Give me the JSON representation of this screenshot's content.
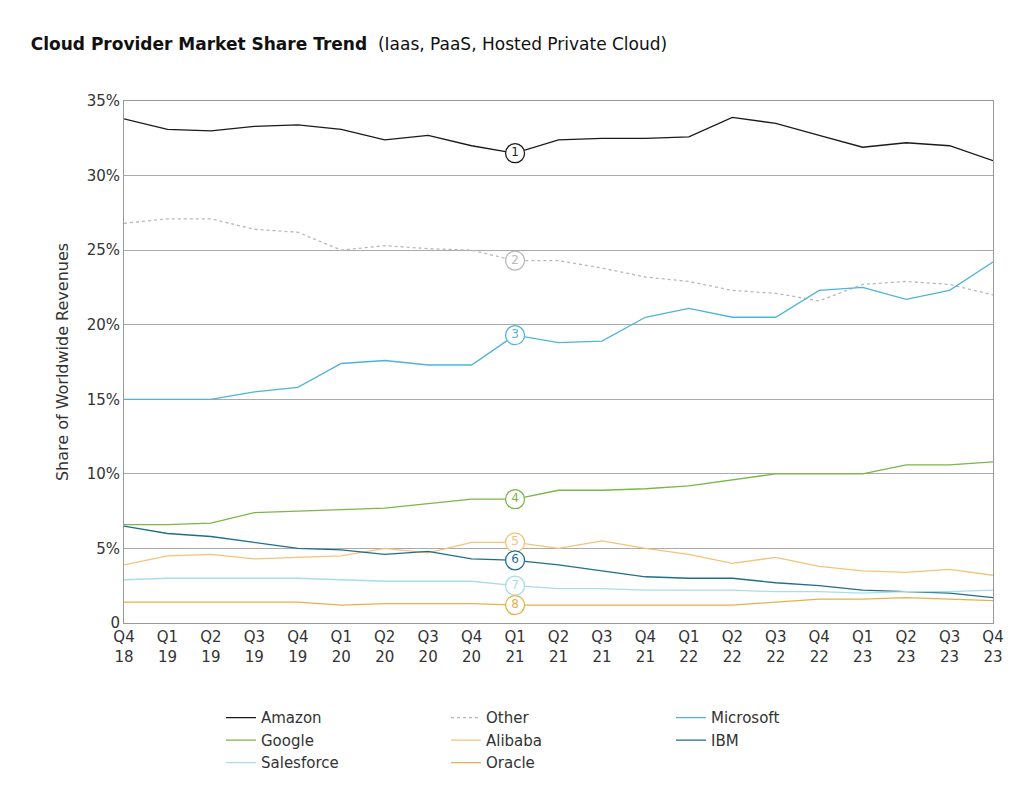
{
  "chart_data": {
    "type": "line",
    "title": "Cloud Provider Market Share Trend",
    "subtitle": "(Iaas, PaaS, Hosted Private Cloud)",
    "y_label": "Share of Worldwide Revenues",
    "categories": [
      "Q4 18",
      "Q1 19",
      "Q2 19",
      "Q3 19",
      "Q4 19",
      "Q1 20",
      "Q2 20",
      "Q3 20",
      "Q4 20",
      "Q1 21",
      "Q2 21",
      "Q3 21",
      "Q4 21",
      "Q1 22",
      "Q2 22",
      "Q3 22",
      "Q4 22",
      "Q1 23",
      "Q2 23",
      "Q3 23",
      "Q4 23"
    ],
    "ylim": [
      0,
      35
    ],
    "yticks": [
      0,
      {
        "value": 5,
        "label": "5%"
      },
      {
        "value": 10,
        "label": "10%"
      },
      {
        "value": 15,
        "label": "15%"
      },
      {
        "value": 20,
        "label": "20%"
      },
      {
        "value": 25,
        "label": "25%"
      },
      {
        "value": 30,
        "label": "30%"
      },
      {
        "value": 35,
        "label": "35%"
      }
    ],
    "grid": true,
    "legend": "bottom",
    "series": [
      {
        "name": "Amazon",
        "label": "1",
        "color": "#1a1a1a",
        "line_style": "solid",
        "values": [
          33.8,
          33.1,
          33.0,
          33.3,
          33.4,
          33.1,
          32.4,
          32.7,
          32.0,
          31.5,
          32.4,
          32.5,
          32.5,
          32.6,
          33.9,
          33.5,
          32.7,
          31.9,
          32.2,
          32.0,
          31.0
        ]
      },
      {
        "name": "Other",
        "label": "2",
        "color": "#b8b8b8",
        "line_style": "dotted",
        "values": [
          26.8,
          27.1,
          27.1,
          26.4,
          26.2,
          25.0,
          25.3,
          25.1,
          25.0,
          24.3,
          24.3,
          23.8,
          23.2,
          22.9,
          22.3,
          22.1,
          21.6,
          22.7,
          22.9,
          22.7,
          22.0
        ]
      },
      {
        "name": "Microsoft",
        "label": "3",
        "color": "#4fb3d9",
        "line_style": "solid",
        "values": [
          15.0,
          15.0,
          15.0,
          15.5,
          15.8,
          17.4,
          17.6,
          17.3,
          17.3,
          19.3,
          18.8,
          18.9,
          20.5,
          21.1,
          20.5,
          20.5,
          22.3,
          22.5,
          21.7,
          22.3,
          24.2
        ]
      },
      {
        "name": "Google",
        "label": "4",
        "color": "#7ab648",
        "line_style": "solid",
        "values": [
          6.6,
          6.6,
          6.7,
          7.4,
          7.5,
          7.6,
          7.7,
          8.0,
          8.3,
          8.3,
          8.9,
          8.9,
          9.0,
          9.2,
          9.6,
          10.0,
          10.0,
          10.0,
          10.6,
          10.6,
          10.8
        ]
      },
      {
        "name": "Alibaba",
        "label": "5",
        "color": "#f5c27a",
        "line_style": "solid",
        "values": [
          3.9,
          4.5,
          4.6,
          4.3,
          4.4,
          4.5,
          5.0,
          4.7,
          5.4,
          5.4,
          5.0,
          5.5,
          5.0,
          4.6,
          4.0,
          4.4,
          3.8,
          3.5,
          3.4,
          3.6,
          3.2
        ]
      },
      {
        "name": "IBM",
        "label": "6",
        "color": "#1e6f8c",
        "line_style": "solid",
        "values": [
          6.5,
          6.0,
          5.8,
          5.4,
          5.0,
          4.9,
          4.6,
          4.8,
          4.3,
          4.2,
          3.9,
          3.5,
          3.1,
          3.0,
          3.0,
          2.7,
          2.5,
          2.2,
          2.1,
          2.0,
          1.7
        ]
      },
      {
        "name": "Salesforce",
        "label": "7",
        "color": "#a8dcef",
        "line_style": "solid",
        "values": [
          2.9,
          3.0,
          3.0,
          3.0,
          3.0,
          2.9,
          2.8,
          2.8,
          2.8,
          2.5,
          2.3,
          2.3,
          2.2,
          2.2,
          2.2,
          2.1,
          2.1,
          2.0,
          2.1,
          2.1,
          2.2
        ]
      },
      {
        "name": "Oracle",
        "label": "8",
        "color": "#e8b04a",
        "line_style": "solid",
        "values": [
          1.4,
          1.4,
          1.4,
          1.4,
          1.4,
          1.2,
          1.3,
          1.3,
          1.3,
          1.2,
          1.2,
          1.2,
          1.2,
          1.2,
          1.2,
          1.4,
          1.6,
          1.6,
          1.7,
          1.6,
          1.5
        ]
      }
    ]
  }
}
